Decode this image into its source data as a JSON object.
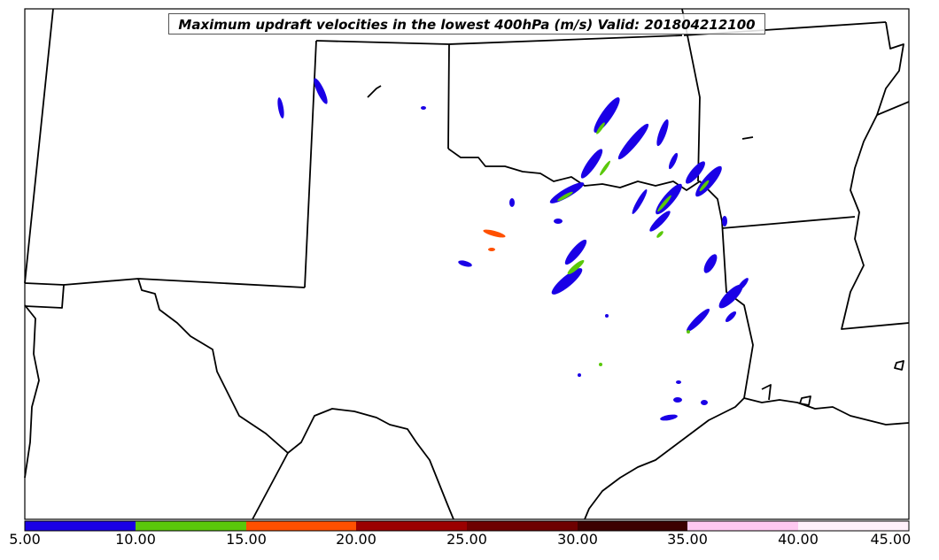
{
  "title": "Maximum updraft velocities in the lowest 400hPa (m/s) Valid: 201804212100",
  "colorbar": {
    "ticks": [
      "5.00",
      "10.00",
      "15.00",
      "20.00",
      "25.00",
      "30.00",
      "35.00",
      "40.00",
      "45.00"
    ],
    "colors": [
      "#1a00e6",
      "#5ac80a",
      "#ff5000",
      "#9b0000",
      "#6e0000",
      "#3c0000",
      "#ffc8f0",
      "#fff0fa"
    ]
  },
  "map": {
    "region": "Southern Plains, USA",
    "line_color": "#000000",
    "updraft_colors": {
      "weak": "#1a00e6",
      "moderate": "#5ac80a",
      "strong": "#ff5000"
    }
  }
}
